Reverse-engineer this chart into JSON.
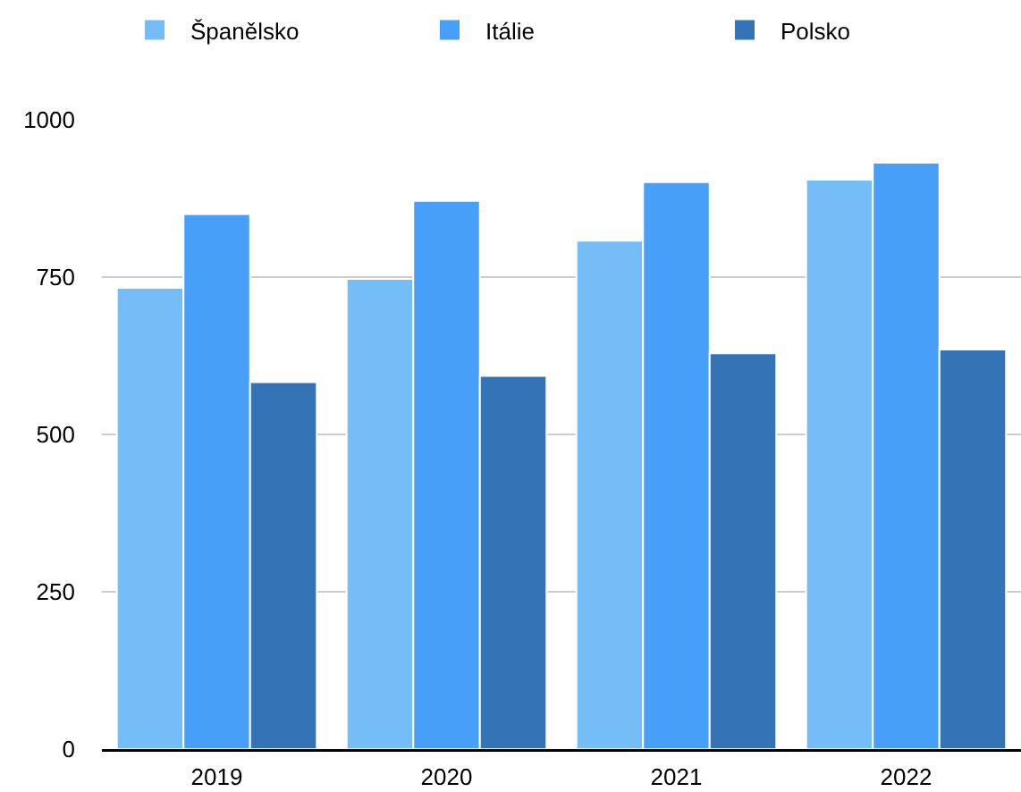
{
  "chart_data": {
    "type": "bar",
    "categories": [
      "2019",
      "2020",
      "2021",
      "2022"
    ],
    "series": [
      {
        "name": "Španělsko",
        "color": "#74bdf7",
        "values": [
          733,
          747,
          808,
          905
        ]
      },
      {
        "name": "Itálie",
        "color": "#479ff8",
        "values": [
          850,
          871,
          901,
          932
        ]
      },
      {
        "name": "Polsko",
        "color": "#3473b5",
        "values": [
          583,
          593,
          629,
          635
        ]
      }
    ],
    "ylim": [
      0,
      1000
    ],
    "yticks": [
      0,
      250,
      500,
      750,
      1000
    ],
    "grid": "y",
    "legend": "top"
  }
}
